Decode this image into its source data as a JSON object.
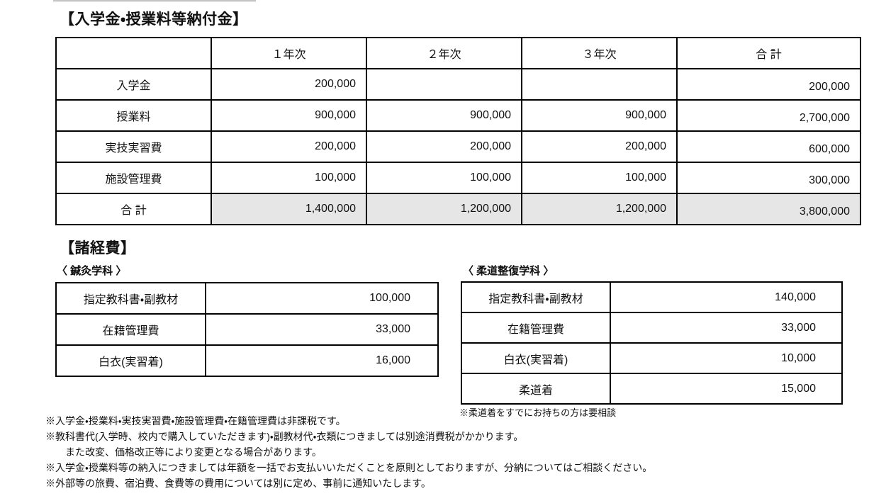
{
  "section1": {
    "title": "【入学金・授業料等納付金】",
    "table": {
      "headers": [
        "",
        "１年次",
        "２年次",
        "３年次",
        "合 計"
      ],
      "rows": [
        {
          "label": "入学金",
          "values": [
            "200,000",
            "",
            "",
            "200,000"
          ]
        },
        {
          "label": "授業料",
          "values": [
            "900,000",
            "900,000",
            "900,000",
            "2,700,000"
          ]
        },
        {
          "label": "実技実習費",
          "values": [
            "200,000",
            "200,000",
            "200,000",
            "600,000"
          ]
        },
        {
          "label": "施設管理費",
          "values": [
            "100,000",
            "100,000",
            "100,000",
            "300,000"
          ]
        },
        {
          "label": "合 計",
          "values": [
            "1,400,000",
            "1,200,000",
            "1,200,000",
            "3,800,000"
          ]
        }
      ]
    }
  },
  "section2": {
    "title": "【諸経費】",
    "acupuncture": {
      "caption": "〈 鍼灸学科 〉",
      "rows": [
        {
          "label": "指定教科書・副教材",
          "value": "100,000"
        },
        {
          "label": "在籍管理費",
          "value": "33,000"
        },
        {
          "label": "白衣(実習着)",
          "value": "16,000"
        }
      ]
    },
    "judo": {
      "caption": "〈 柔道整復学科 〉",
      "rows": [
        {
          "label": "指定教科書・副教材",
          "value": "140,000"
        },
        {
          "label": "在籍管理費",
          "value": "33,000"
        },
        {
          "label": "白衣(実習着)",
          "value": "10,000"
        },
        {
          "label": "柔道着",
          "value": "15,000"
        }
      ],
      "note": "※柔道着をすでにお持ちの方は要相談"
    }
  },
  "footnotes": [
    {
      "text": "※入学金・授業料・実技実習費・施設管理費・在籍管理費は非課税です。",
      "indent": false
    },
    {
      "text": "※教科書代(入学時、校内で購入していただきます)・副教材代・衣類につきましては別途消費税がかかります。",
      "indent": false
    },
    {
      "text": "また改変、価格改正等により変更となる場合があります。",
      "indent": true
    },
    {
      "text": "※入学金・授業料等の納入につきましては年額を一括でお支払いいただくことを原則としておりますが、分納についてはご相談ください。",
      "indent": false
    },
    {
      "text": "※外部等の旅費、宿泊費、食費等の費用については別に定め、事前に通知いたします。",
      "indent": false
    }
  ],
  "colors": {
    "total_row_bg": "#e6e6e6",
    "border": "#000000",
    "text": "#111111"
  }
}
